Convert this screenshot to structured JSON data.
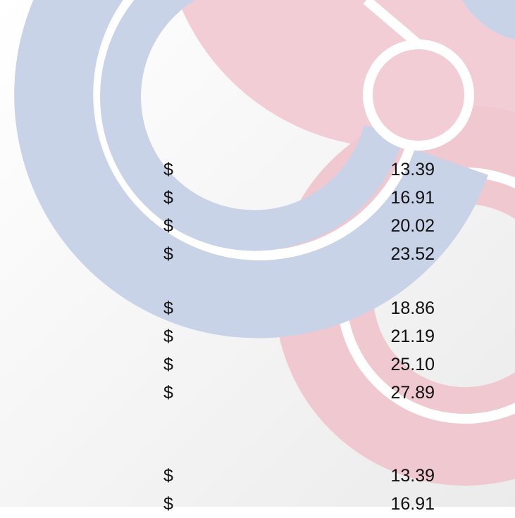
{
  "groups": [
    {
      "rows": [
        {
          "currency": "$",
          "amount": "13.39"
        },
        {
          "currency": "$",
          "amount": "16.91"
        },
        {
          "currency": "$",
          "amount": "20.02"
        },
        {
          "currency": "$",
          "amount": "23.52"
        }
      ]
    },
    {
      "rows": [
        {
          "currency": "$",
          "amount": "18.86"
        },
        {
          "currency": "$",
          "amount": "21.19"
        },
        {
          "currency": "$",
          "amount": "25.10"
        },
        {
          "currency": "$",
          "amount": "27.89"
        }
      ]
    },
    {
      "rows": [
        {
          "currency": "$",
          "amount": "13.39"
        },
        {
          "currency": "$",
          "amount": "16.91"
        }
      ]
    }
  ]
}
